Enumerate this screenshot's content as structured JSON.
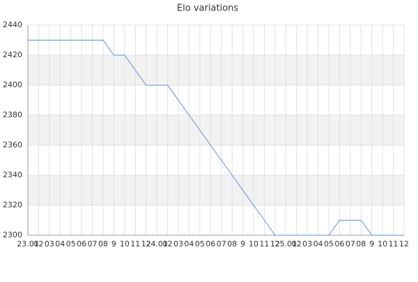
{
  "chart_data": {
    "type": "line",
    "title": "Elo variations",
    "categories": [
      "23.01",
      "02",
      "03",
      "04",
      "05",
      "06",
      "07",
      "08",
      "9",
      "10",
      "11",
      "12",
      "24.01",
      "02",
      "03",
      "04",
      "05",
      "06",
      "07",
      "08",
      "9",
      "10",
      "11",
      "12",
      "25.01",
      "02",
      "03",
      "04",
      "05",
      "06",
      "07",
      "08",
      "9",
      "10",
      "11",
      "12"
    ],
    "values": [
      2430,
      2430,
      2430,
      2430,
      2430,
      2430,
      2430,
      2430,
      2420,
      2420,
      2410,
      2400,
      2400,
      2400,
      2390,
      2380,
      2370,
      2360,
      2350,
      2340,
      2330,
      2320,
      2310,
      2300,
      2300,
      2300,
      2300,
      2300,
      2300,
      2310,
      2310,
      2310,
      2300,
      2300,
      2300,
      2300
    ],
    "color": "#5b8fd6",
    "ylim": [
      2300,
      2440
    ],
    "yticks": [
      2300,
      2320,
      2340,
      2360,
      2380,
      2400,
      2420,
      2440
    ],
    "grid": true,
    "band_color": "#f2f2f2"
  }
}
